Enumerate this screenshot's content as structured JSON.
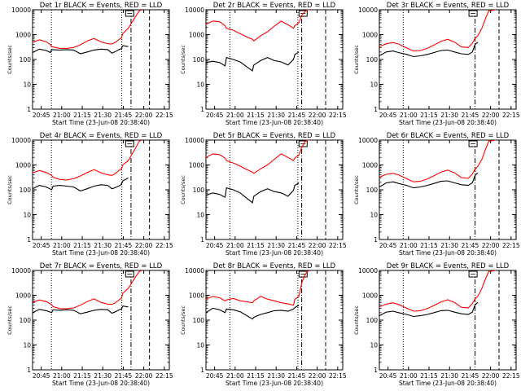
{
  "chart_data": [
    {
      "type": "line",
      "title": "Det 1r BLACK = Events, RED = LLD",
      "xlabel": "Start Time (23-Jun-08 20:38:40)",
      "ylabel": "Counts/sec",
      "xticks": [
        "20:45",
        "21:00",
        "21:15",
        "21:30",
        "21:45",
        "22:00",
        "22:15"
      ],
      "yticks": [
        "1",
        "10",
        "100",
        "1000",
        "10000"
      ],
      "yscale": "log",
      "ylim": [
        1,
        10000
      ],
      "xlim_minutes": [
        0,
        100
      ],
      "x_minutes": [
        0,
        5,
        10,
        13,
        14,
        20,
        25,
        30,
        35,
        40,
        45,
        50,
        55,
        58,
        60,
        64,
        65,
        66,
        70,
        75,
        78,
        80
      ],
      "series": [
        {
          "name": "RED",
          "color": "#ff0000",
          "values": [
            500,
            620,
            520,
            400,
            330,
            280,
            280,
            300,
            390,
            550,
            700,
            510,
            430,
            420,
            470,
            680,
            730,
            1100,
            1800,
            5000,
            9000,
            10000
          ]
        },
        {
          "name": "BLACK",
          "color": "#000000",
          "values": [
            190,
            260,
            230,
            190,
            250,
            240,
            250,
            240,
            170,
            200,
            240,
            260,
            250,
            180,
            200,
            260,
            270,
            360,
            330,
            null,
            null,
            null
          ]
        }
      ],
      "markers": {
        "dotted": [
          13.8,
          65.2
        ],
        "dashdot": 72.0,
        "dashed": 85.5,
        "box": 71.0
      }
    },
    {
      "type": "line",
      "title": "Det 2r BLACK = Events, RED = LLD",
      "xlabel": "Start Time (23-Jun-08 20:38:40)",
      "ylabel": "Counts/sec",
      "xticks": [
        "20:45",
        "21:00",
        "21:15",
        "21:30",
        "21:45",
        "22:00",
        "22:15"
      ],
      "yticks": [
        "1",
        "10",
        "100",
        "1000",
        "10000"
      ],
      "yscale": "log",
      "ylim": [
        1,
        10000
      ],
      "xlim_minutes": [
        0,
        100
      ],
      "x_minutes": [
        0,
        5,
        10,
        14,
        15,
        20,
        25,
        30,
        34,
        35,
        40,
        45,
        50,
        55,
        60,
        64,
        65,
        68,
        70,
        72,
        74,
        76
      ],
      "series": [
        {
          "name": "RED",
          "color": "#ff0000",
          "values": [
            2600,
            3500,
            3300,
            2300,
            1800,
            1500,
            1100,
            800,
            650,
            560,
            900,
            1300,
            2200,
            3500,
            2500,
            1800,
            2300,
            3000,
            6000,
            8000,
            10000,
            10000
          ]
        },
        {
          "name": "BLACK",
          "color": "#000000",
          "values": [
            75,
            85,
            75,
            55,
            120,
            100,
            80,
            50,
            35,
            60,
            90,
            120,
            90,
            80,
            60,
            100,
            160,
            200,
            null,
            null,
            null,
            null
          ]
        }
      ],
      "markers": {
        "dotted": [
          17.5,
          67.2
        ],
        "dashdot": 70.0,
        "dashed": 87.5,
        "box": 71.0
      }
    },
    {
      "type": "line",
      "title": "Det 3r BLACK = Events, RED = LLD",
      "xlabel": "Start Time (23-Jun-08 20:38:40)",
      "ylabel": "Counts/sec",
      "xticks": [
        "20:45",
        "21:00",
        "21:15",
        "21:30",
        "21:45",
        "22:00",
        "22:15"
      ],
      "yticks": [
        "1",
        "10",
        "100",
        "1000",
        "10000"
      ],
      "yscale": "log",
      "ylim": [
        1,
        10000
      ],
      "xlim_minutes": [
        0,
        100
      ],
      "x_minutes": [
        0,
        5,
        10,
        14,
        20,
        25,
        30,
        35,
        40,
        45,
        50,
        55,
        60,
        65,
        68,
        70,
        72,
        75,
        78,
        80,
        85
      ],
      "series": [
        {
          "name": "RED",
          "color": "#ff0000",
          "values": [
            330,
            430,
            480,
            420,
            290,
            220,
            230,
            280,
            380,
            530,
            650,
            500,
            320,
            300,
            450,
            700,
            900,
            1800,
            5000,
            9000,
            10000
          ]
        },
        {
          "name": "BLACK",
          "color": "#000000",
          "values": [
            140,
            200,
            220,
            190,
            160,
            130,
            140,
            160,
            190,
            230,
            240,
            200,
            170,
            160,
            200,
            400,
            500,
            null,
            null,
            null,
            null
          ]
        }
      ],
      "markers": {
        "dotted": [
          17.5
        ],
        "dashdot": 70.0,
        "dashed": 87.5,
        "box": 68.5
      }
    },
    {
      "type": "line",
      "title": "Det 4r BLACK = Events, RED = LLD",
      "xlabel": "Start Time (23-Jun-08 20:38:40)",
      "ylabel": "Counts/sec",
      "xticks": [
        "20:45",
        "21:00",
        "21:15",
        "21:30",
        "21:45",
        "22:00",
        "22:15"
      ],
      "yticks": [
        "1",
        "10",
        "100",
        "1000",
        "10000"
      ],
      "yscale": "log",
      "ylim": [
        1,
        10000
      ],
      "xlim_minutes": [
        0,
        100
      ],
      "x_minutes": [
        0,
        5,
        10,
        14,
        15,
        20,
        25,
        30,
        35,
        40,
        45,
        50,
        55,
        58,
        60,
        64,
        65,
        66,
        70,
        75,
        78,
        80
      ],
      "series": [
        {
          "name": "RED",
          "color": "#ff0000",
          "values": [
            480,
            600,
            500,
            380,
            320,
            260,
            250,
            280,
            360,
            500,
            650,
            480,
            400,
            380,
            430,
            650,
            700,
            1000,
            1500,
            4500,
            9000,
            10000
          ]
        },
        {
          "name": "BLACK",
          "color": "#000000",
          "values": [
            110,
            150,
            130,
            100,
            140,
            150,
            140,
            130,
            90,
            110,
            140,
            160,
            150,
            110,
            120,
            150,
            170,
            230,
            300,
            null,
            null,
            null
          ]
        }
      ],
      "markers": {
        "dotted": [
          13.8,
          65.2
        ],
        "dashdot": 72.0,
        "dashed": 85.5,
        "box": 71.0
      }
    },
    {
      "type": "line",
      "title": "Det 5r BLACK = Events, RED = LLD",
      "xlabel": "Start Time (23-Jun-08 20:38:40)",
      "ylabel": "Counts/sec",
      "xticks": [
        "20:45",
        "21:00",
        "21:15",
        "21:30",
        "21:45",
        "22:00",
        "22:15"
      ],
      "yticks": [
        "1",
        "10",
        "100",
        "1000",
        "10000"
      ],
      "yscale": "log",
      "ylim": [
        1,
        10000
      ],
      "xlim_minutes": [
        0,
        100
      ],
      "x_minutes": [
        0,
        5,
        10,
        14,
        15,
        20,
        25,
        30,
        34,
        35,
        40,
        45,
        50,
        55,
        60,
        64,
        65,
        68,
        70,
        72,
        74,
        76
      ],
      "series": [
        {
          "name": "RED",
          "color": "#ff0000",
          "values": [
            2000,
            2800,
            2600,
            1900,
            1500,
            1200,
            900,
            650,
            520,
            460,
            700,
            1000,
            1700,
            2800,
            2000,
            1500,
            1900,
            2500,
            5000,
            8000,
            10000,
            10000
          ]
        },
        {
          "name": "BLACK",
          "color": "#000000",
          "values": [
            60,
            75,
            65,
            50,
            120,
            100,
            75,
            45,
            30,
            55,
            85,
            110,
            85,
            75,
            55,
            95,
            150,
            190,
            null,
            null,
            null,
            null
          ]
        }
      ],
      "markers": {
        "dotted": [
          17.5,
          67.2
        ],
        "dashdot": 70.0,
        "dashed": 87.5,
        "box": 71.0
      }
    },
    {
      "type": "line",
      "title": "Det 6r BLACK = Events, RED = LLD",
      "xlabel": "Start Time (23-Jun-08 20:38:40)",
      "ylabel": "Counts/sec",
      "xticks": [
        "20:45",
        "21:00",
        "21:15",
        "21:30",
        "21:45",
        "22:00",
        "22:15"
      ],
      "yticks": [
        "1",
        "10",
        "100",
        "1000",
        "10000"
      ],
      "yscale": "log",
      "ylim": [
        1,
        10000
      ],
      "xlim_minutes": [
        0,
        100
      ],
      "x_minutes": [
        0,
        5,
        10,
        14,
        20,
        25,
        30,
        35,
        40,
        45,
        50,
        55,
        60,
        65,
        68,
        70,
        72,
        75,
        78,
        80,
        85
      ],
      "series": [
        {
          "name": "RED",
          "color": "#ff0000",
          "values": [
            320,
            420,
            460,
            400,
            280,
            210,
            220,
            270,
            370,
            510,
            620,
            480,
            310,
            290,
            430,
            680,
            880,
            1700,
            4800,
            9000,
            10000
          ]
        },
        {
          "name": "BLACK",
          "color": "#000000",
          "values": [
            130,
            190,
            210,
            180,
            150,
            120,
            130,
            150,
            180,
            220,
            230,
            190,
            160,
            150,
            190,
            380,
            480,
            null,
            null,
            null,
            null
          ]
        }
      ],
      "markers": {
        "dotted": [
          17.5
        ],
        "dashdot": 70.0,
        "dashed": 87.5,
        "box": 68.5
      }
    },
    {
      "type": "line",
      "title": "Det 7r BLACK = Events, RED = LLD",
      "xlabel": "Start Time (23-Jun-08 20:38:40)",
      "ylabel": "Counts/sec",
      "xticks": [
        "20:45",
        "21:00",
        "21:15",
        "21:30",
        "21:45",
        "22:00",
        "22:15"
      ],
      "yticks": [
        "1",
        "10",
        "100",
        "1000",
        "10000"
      ],
      "yscale": "log",
      "ylim": [
        1,
        10000
      ],
      "xlim_minutes": [
        0,
        100
      ],
      "x_minutes": [
        0,
        5,
        10,
        14,
        15,
        20,
        25,
        30,
        35,
        40,
        45,
        50,
        55,
        58,
        60,
        64,
        65,
        66,
        70,
        75,
        78,
        80
      ],
      "series": [
        {
          "name": "RED",
          "color": "#ff0000",
          "values": [
            520,
            650,
            560,
            420,
            350,
            290,
            290,
            310,
            400,
            560,
            720,
            520,
            440,
            430,
            480,
            700,
            760,
            1200,
            1900,
            5200,
            9000,
            10000
          ]
        },
        {
          "name": "BLACK",
          "color": "#000000",
          "values": [
            200,
            270,
            240,
            200,
            260,
            250,
            260,
            250,
            180,
            210,
            250,
            270,
            260,
            190,
            210,
            270,
            280,
            370,
            340,
            null,
            null,
            null
          ]
        }
      ],
      "markers": {
        "dotted": [
          13.8,
          65.2
        ],
        "dashdot": 72.0,
        "dashed": 85.5,
        "box": 71.0
      }
    },
    {
      "type": "line",
      "title": "Det 8r BLACK = Events, RED = LLD",
      "xlabel": "Start Time (23-Jun-08 20:38:40)",
      "ylabel": "Counts/sec",
      "xticks": [
        "20:45",
        "21:00",
        "21:15",
        "21:30",
        "21:45",
        "22:00",
        "22:15"
      ],
      "yticks": [
        "1",
        "10",
        "100",
        "1000",
        "10000"
      ],
      "yscale": "log",
      "ylim": [
        1,
        10000
      ],
      "xlim_minutes": [
        0,
        100
      ],
      "x_minutes": [
        0,
        5,
        10,
        14,
        15,
        20,
        25,
        30,
        34,
        35,
        40,
        45,
        50,
        55,
        60,
        64,
        65,
        68,
        70,
        72,
        74,
        76
      ],
      "series": [
        {
          "name": "RED",
          "color": "#ff0000",
          "values": [
            700,
            900,
            800,
            600,
            650,
            750,
            600,
            550,
            500,
            600,
            900,
            700,
            600,
            500,
            450,
            400,
            700,
            900,
            3000,
            6000,
            9000,
            10000
          ]
        },
        {
          "name": "BLACK",
          "color": "#000000",
          "values": [
            200,
            300,
            260,
            200,
            280,
            260,
            220,
            150,
            110,
            130,
            170,
            200,
            240,
            250,
            230,
            280,
            320,
            400,
            null,
            null,
            null,
            null
          ]
        }
      ],
      "markers": {
        "dotted": [
          17.5,
          67.2
        ],
        "dashdot": 70.0,
        "dashed": 87.5,
        "box": 71.0
      }
    },
    {
      "type": "line",
      "title": "Det 9r BLACK = Events, RED = LLD",
      "xlabel": "Start Time (23-Jun-08 20:38:40)",
      "ylabel": "Counts/sec",
      "xticks": [
        "20:45",
        "21:00",
        "21:15",
        "21:30",
        "21:45",
        "22:00",
        "22:15"
      ],
      "yticks": [
        "1",
        "10",
        "100",
        "1000",
        "10000"
      ],
      "yscale": "log",
      "ylim": [
        1,
        10000
      ],
      "xlim_minutes": [
        0,
        100
      ],
      "x_minutes": [
        0,
        5,
        10,
        14,
        20,
        25,
        30,
        35,
        40,
        45,
        50,
        55,
        60,
        65,
        68,
        70,
        72,
        75,
        78,
        80,
        85
      ],
      "series": [
        {
          "name": "RED",
          "color": "#ff0000",
          "values": [
            340,
            440,
            500,
            430,
            300,
            230,
            240,
            290,
            390,
            540,
            660,
            510,
            330,
            310,
            460,
            720,
            920,
            1900,
            5200,
            9000,
            10000
          ]
        },
        {
          "name": "BLACK",
          "color": "#000000",
          "values": [
            150,
            210,
            230,
            200,
            170,
            140,
            150,
            170,
            200,
            240,
            250,
            210,
            180,
            170,
            210,
            410,
            520,
            null,
            null,
            null,
            null
          ]
        }
      ],
      "markers": {
        "dotted": [
          17.5
        ],
        "dashdot": 70.0,
        "dashed": 87.5,
        "box": 68.5
      }
    }
  ]
}
